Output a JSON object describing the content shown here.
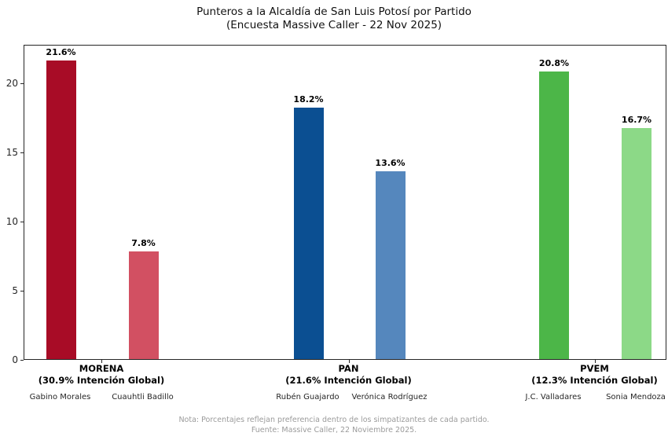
{
  "title": {
    "line1": "Punteros a la Alcaldía de San Luis Potosí por Partido",
    "line2": "(Encuesta Massive Caller - 22 Nov 2025)"
  },
  "footer": {
    "line1": "Nota: Porcentajes reflejan preferencia dentro de los simpatizantes de cada partido.",
    "line2": "Fuente: Massive Caller, 22 Noviembre 2025."
  },
  "chart_data": {
    "type": "bar",
    "title": "Punteros a la Alcaldía de San Luis Potosí por Partido (Encuesta Massive Caller - 22 Nov 2025)",
    "xlabel": "",
    "ylabel": "",
    "ylim": [
      0,
      22.8
    ],
    "yticks": [
      0,
      5,
      10,
      15,
      20
    ],
    "grid": false,
    "legend": false,
    "groups": [
      {
        "party": "MORENA",
        "subtitle": "(30.9% Intención Global)",
        "global_intention_pct": 30.9,
        "bars": [
          {
            "candidate": "Gabino Morales",
            "value": 21.6,
            "label": "21.6%",
            "color": "#A80C26"
          },
          {
            "candidate": "Cuauhtli Badillo",
            "value": 7.8,
            "label": "7.8%",
            "color": "#D25062"
          }
        ]
      },
      {
        "party": "PAN",
        "subtitle": "(21.6% Intención Global)",
        "global_intention_pct": 21.6,
        "bars": [
          {
            "candidate": "Rubén Guajardo",
            "value": 18.2,
            "label": "18.2%",
            "color": "#0B4F92"
          },
          {
            "candidate": "Verónica Rodríguez",
            "value": 13.6,
            "label": "13.6%",
            "color": "#5587BD"
          }
        ]
      },
      {
        "party": "PVEM",
        "subtitle": "(12.3% Intención Global)",
        "global_intention_pct": 12.3,
        "bars": [
          {
            "candidate": "J.C. Valladares",
            "value": 20.8,
            "label": "20.8%",
            "color": "#4CB648"
          },
          {
            "candidate": "Sonia Mendoza",
            "value": 16.7,
            "label": "16.7%",
            "color": "#8CD987"
          }
        ]
      }
    ]
  }
}
